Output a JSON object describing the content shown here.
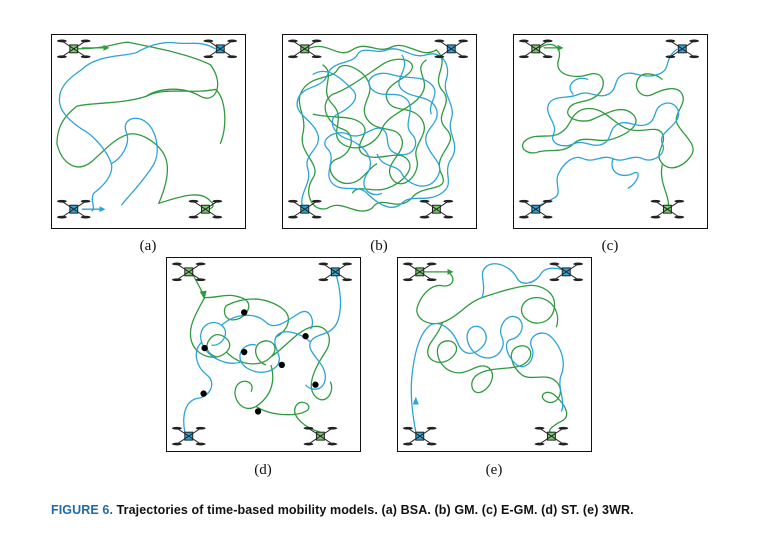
{
  "figure": {
    "panels": [
      {
        "id": "a",
        "label": "(a)"
      },
      {
        "id": "b",
        "label": "(b)"
      },
      {
        "id": "c",
        "label": "(c)"
      },
      {
        "id": "d",
        "label": "(d)"
      },
      {
        "id": "e",
        "label": "(e)"
      }
    ],
    "caption": {
      "figure_number": "FIGURE 6.",
      "text": "Trajectories of time-based mobility models. (a) BSA. (b) GM. (c) E-GM. (d) ST. (e) 3WR."
    },
    "colors": {
      "trajectory_blue": "#2aa3d8",
      "trajectory_green": "#2f9a3e",
      "caption_accent": "#1f6aa8"
    },
    "icons": [
      "drone-icon",
      "waypoint-dot"
    ]
  }
}
